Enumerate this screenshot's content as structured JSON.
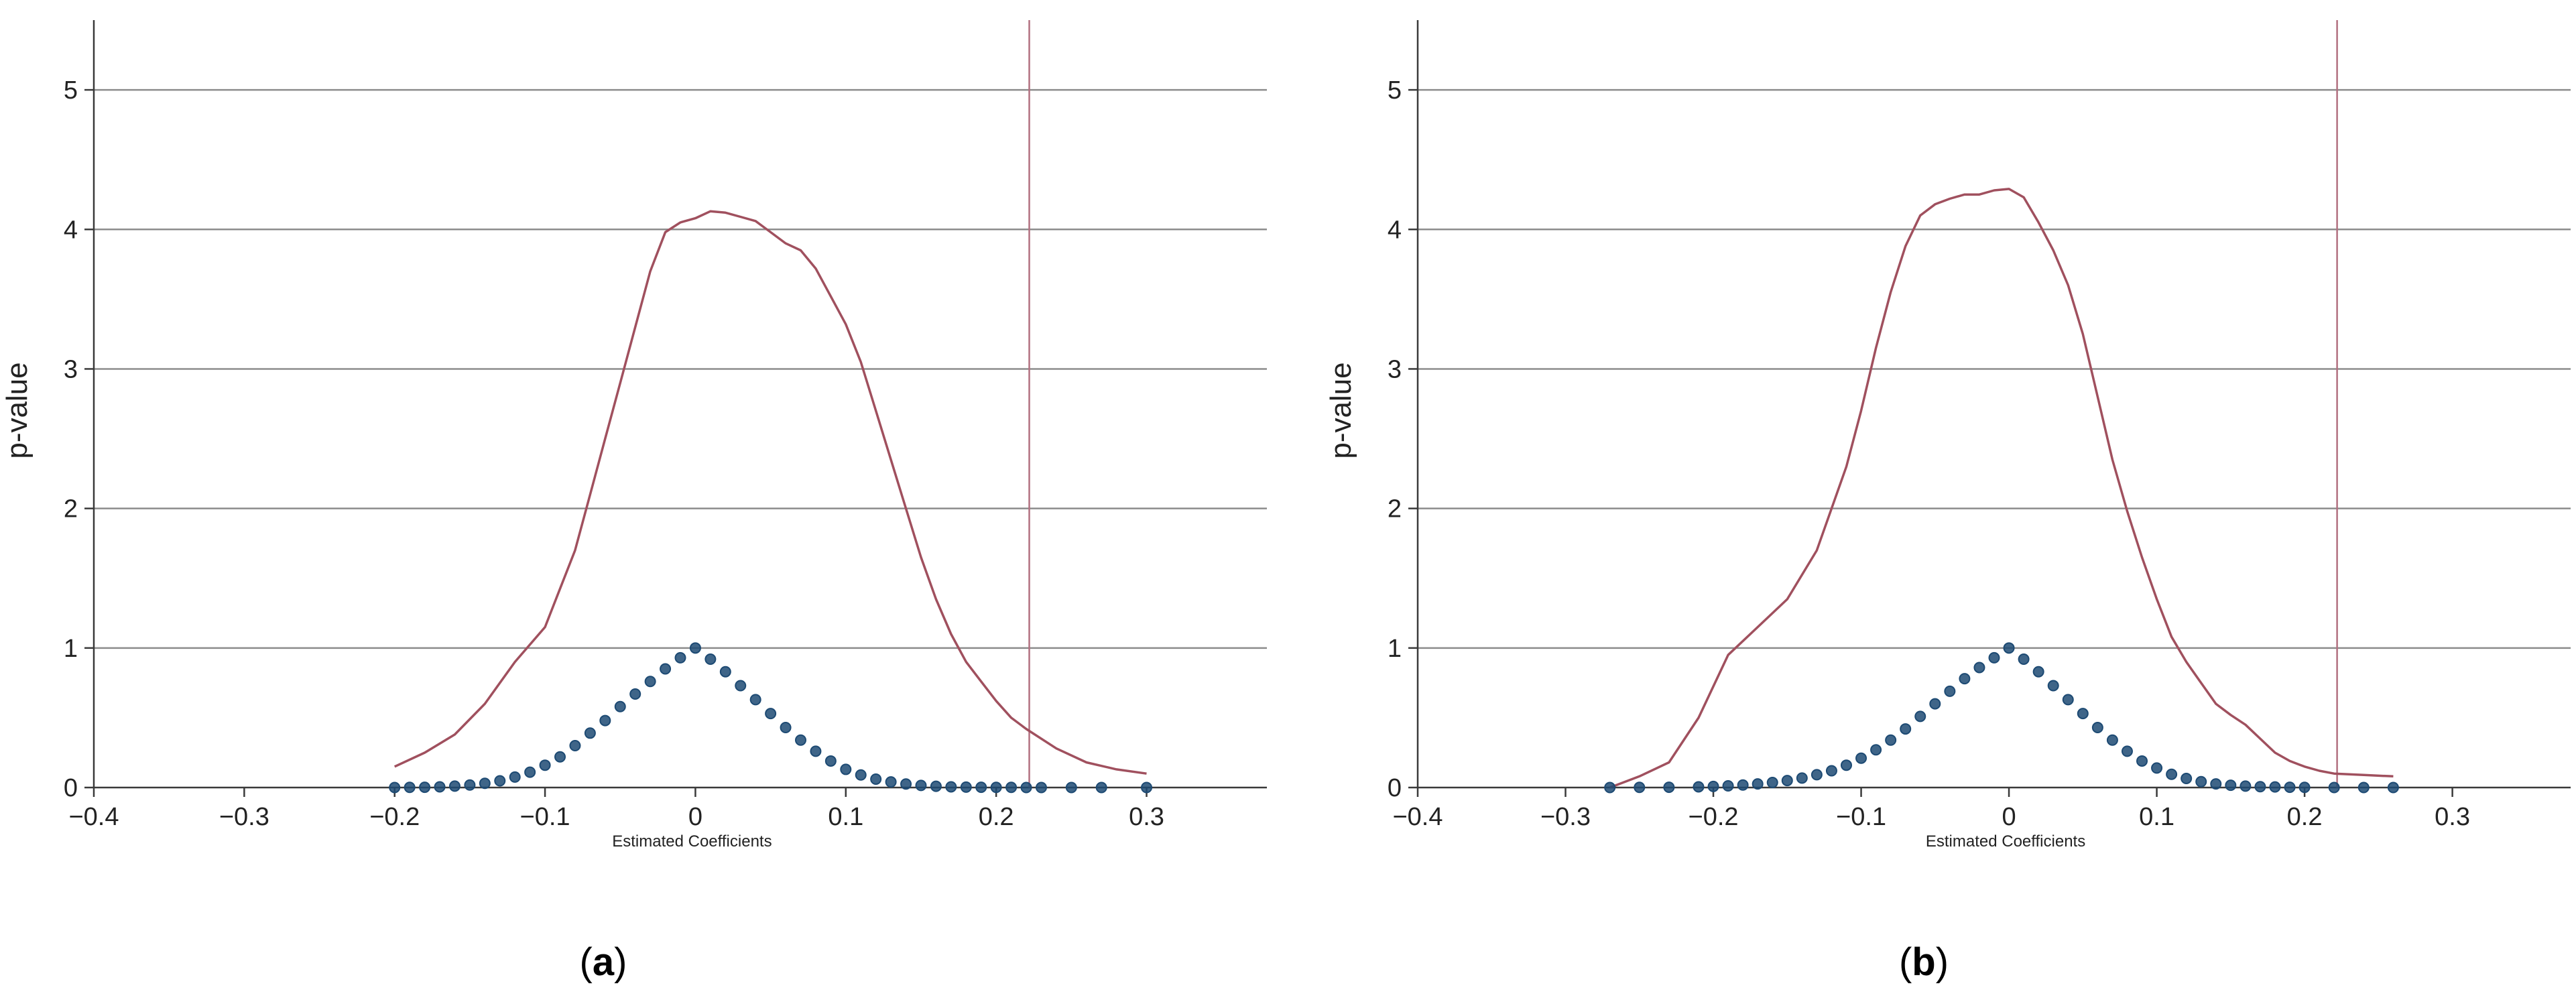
{
  "colors": {
    "grid": "#8c8c8c",
    "axis": "#3a3a3a",
    "density": "#a0505e",
    "vline": "#b27080",
    "points": "#1d4a73"
  },
  "chart_data": [
    {
      "panel_label": "a",
      "type": "scatter",
      "xlabel": "Estimated Coefficients",
      "ylabel": "p-value",
      "xlim": [
        -0.4,
        0.38
      ],
      "ylim": [
        0,
        5.5
      ],
      "xticks": [
        -0.4,
        -0.3,
        -0.2,
        -0.1,
        0,
        0.1,
        0.2,
        0.3
      ],
      "xtick_labels": [
        "−0.4",
        "−0.3",
        "−0.2",
        "−0.1",
        "0",
        "0.1",
        "0.2",
        "0.3"
      ],
      "yticks": [
        0,
        1,
        2,
        3,
        4,
        5
      ],
      "ytick_labels": [
        "0",
        "1",
        "2",
        "3",
        "4",
        "5"
      ],
      "grid": "horizontal",
      "vline_x": 0.222,
      "density_curve": {
        "x": [
          -0.2,
          -0.18,
          -0.16,
          -0.14,
          -0.12,
          -0.1,
          -0.08,
          -0.07,
          -0.06,
          -0.05,
          -0.04,
          -0.03,
          -0.02,
          -0.01,
          0.0,
          0.01,
          0.02,
          0.03,
          0.04,
          0.05,
          0.06,
          0.07,
          0.08,
          0.09,
          0.1,
          0.11,
          0.12,
          0.13,
          0.14,
          0.15,
          0.16,
          0.17,
          0.18,
          0.19,
          0.2,
          0.21,
          0.22,
          0.24,
          0.26,
          0.28,
          0.3
        ],
        "y": [
          0.15,
          0.25,
          0.38,
          0.6,
          0.9,
          1.15,
          1.7,
          2.1,
          2.5,
          2.9,
          3.3,
          3.7,
          3.98,
          4.05,
          4.08,
          4.13,
          4.12,
          4.09,
          4.06,
          3.98,
          3.9,
          3.85,
          3.72,
          3.52,
          3.32,
          3.05,
          2.7,
          2.35,
          2.0,
          1.65,
          1.35,
          1.1,
          0.9,
          0.76,
          0.62,
          0.5,
          0.42,
          0.28,
          0.18,
          0.13,
          0.1
        ]
      },
      "points": {
        "x": [
          -0.2,
          -0.19,
          -0.18,
          -0.17,
          -0.16,
          -0.15,
          -0.14,
          -0.13,
          -0.12,
          -0.11,
          -0.1,
          -0.09,
          -0.08,
          -0.07,
          -0.06,
          -0.05,
          -0.04,
          -0.03,
          -0.02,
          -0.01,
          0.0,
          0.01,
          0.02,
          0.03,
          0.04,
          0.05,
          0.06,
          0.07,
          0.08,
          0.09,
          0.1,
          0.11,
          0.12,
          0.13,
          0.14,
          0.15,
          0.16,
          0.17,
          0.18,
          0.19,
          0.2,
          0.21,
          0.22,
          0.23,
          0.25,
          0.27,
          0.3
        ],
        "y": [
          0.0,
          0.001,
          0.002,
          0.005,
          0.01,
          0.018,
          0.03,
          0.048,
          0.075,
          0.11,
          0.16,
          0.22,
          0.3,
          0.39,
          0.48,
          0.58,
          0.67,
          0.76,
          0.85,
          0.93,
          1.0,
          0.92,
          0.83,
          0.73,
          0.63,
          0.53,
          0.43,
          0.34,
          0.26,
          0.19,
          0.13,
          0.09,
          0.06,
          0.04,
          0.025,
          0.015,
          0.009,
          0.005,
          0.003,
          0.002,
          0.001,
          0.001,
          0.0,
          0.0,
          0.0,
          0.0,
          0.0
        ]
      }
    },
    {
      "panel_label": "b",
      "type": "scatter",
      "xlabel": "Estimated Coefficients",
      "ylabel": "p-value",
      "xlim": [
        -0.4,
        0.38
      ],
      "ylim": [
        0,
        5.5
      ],
      "xticks": [
        -0.4,
        -0.3,
        -0.2,
        -0.1,
        0,
        0.1,
        0.2,
        0.3
      ],
      "xtick_labels": [
        "−0.4",
        "−0.3",
        "−0.2",
        "−0.1",
        "0",
        "0.1",
        "0.2",
        "0.3"
      ],
      "yticks": [
        0,
        1,
        2,
        3,
        4,
        5
      ],
      "ytick_labels": [
        "0",
        "1",
        "2",
        "3",
        "4",
        "5"
      ],
      "grid": "horizontal",
      "vline_x": 0.222,
      "density_curve": {
        "x": [
          -0.27,
          -0.25,
          -0.23,
          -0.21,
          -0.19,
          -0.17,
          -0.15,
          -0.13,
          -0.11,
          -0.1,
          -0.09,
          -0.08,
          -0.07,
          -0.06,
          -0.05,
          -0.04,
          -0.03,
          -0.02,
          -0.01,
          0.0,
          0.01,
          0.02,
          0.03,
          0.04,
          0.05,
          0.06,
          0.07,
          0.08,
          0.09,
          0.1,
          0.11,
          0.12,
          0.13,
          0.14,
          0.15,
          0.16,
          0.17,
          0.18,
          0.19,
          0.2,
          0.21,
          0.22,
          0.24,
          0.26
        ],
        "y": [
          0.0,
          0.08,
          0.18,
          0.5,
          0.95,
          1.15,
          1.35,
          1.7,
          2.3,
          2.7,
          3.15,
          3.55,
          3.88,
          4.1,
          4.18,
          4.22,
          4.25,
          4.25,
          4.28,
          4.29,
          4.23,
          4.05,
          3.85,
          3.6,
          3.25,
          2.8,
          2.35,
          1.98,
          1.65,
          1.35,
          1.08,
          0.9,
          0.75,
          0.6,
          0.52,
          0.45,
          0.35,
          0.25,
          0.19,
          0.15,
          0.12,
          0.1,
          0.09,
          0.08
        ]
      },
      "points": {
        "x": [
          -0.27,
          -0.25,
          -0.23,
          -0.21,
          -0.2,
          -0.19,
          -0.18,
          -0.17,
          -0.16,
          -0.15,
          -0.14,
          -0.13,
          -0.12,
          -0.11,
          -0.1,
          -0.09,
          -0.08,
          -0.07,
          -0.06,
          -0.05,
          -0.04,
          -0.03,
          -0.02,
          -0.01,
          0.0,
          0.01,
          0.02,
          0.03,
          0.04,
          0.05,
          0.06,
          0.07,
          0.08,
          0.09,
          0.1,
          0.11,
          0.12,
          0.13,
          0.14,
          0.15,
          0.16,
          0.17,
          0.18,
          0.19,
          0.2,
          0.22,
          0.24,
          0.26
        ],
        "y": [
          0.0,
          0.001,
          0.002,
          0.005,
          0.008,
          0.012,
          0.018,
          0.026,
          0.036,
          0.05,
          0.068,
          0.092,
          0.12,
          0.16,
          0.21,
          0.27,
          0.34,
          0.42,
          0.51,
          0.6,
          0.69,
          0.78,
          0.86,
          0.93,
          1.0,
          0.92,
          0.83,
          0.73,
          0.63,
          0.53,
          0.43,
          0.34,
          0.26,
          0.19,
          0.14,
          0.095,
          0.065,
          0.042,
          0.026,
          0.016,
          0.01,
          0.006,
          0.004,
          0.002,
          0.001,
          0.0,
          0.0,
          0.0
        ]
      }
    }
  ]
}
